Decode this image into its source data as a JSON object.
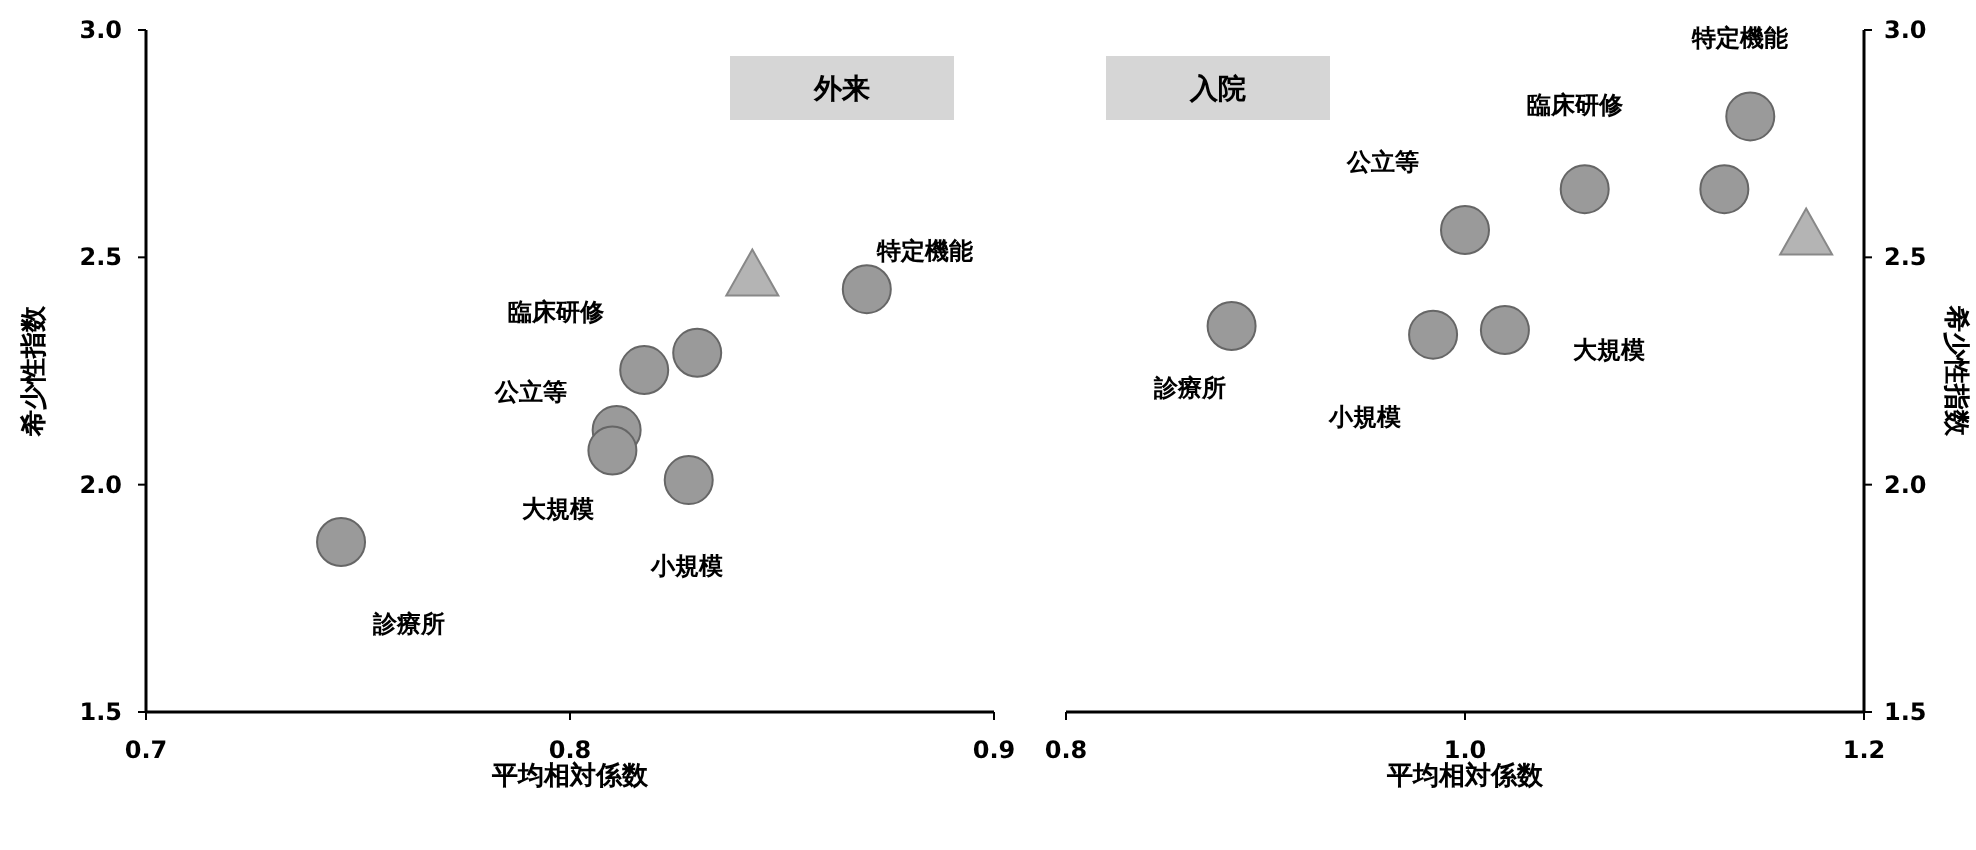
{
  "chart_data": [
    {
      "type": "scatter",
      "title": "外来",
      "xlabel": "平均相対係数",
      "ylabel": "希少性指数",
      "xlim": [
        0.7,
        0.9
      ],
      "xticks": [
        0.7,
        0.8,
        0.9
      ],
      "ylim": [
        1.5,
        3.0
      ],
      "yticks": [
        1.5,
        {
          "value": 2.0,
          "label": "2.0"
        },
        2.5,
        {
          "value": 3.0,
          "label": "3.0"
        }
      ],
      "grid": false,
      "series": [
        {
          "color": "#9a9a9a",
          "marker": "circle",
          "x": [
            0.746,
            0.8175,
            0.83,
            0.811,
            0.81,
            0.828,
            0.87
          ],
          "values": [
            1.874,
            2.252,
            2.29,
            2.12,
            2.075,
            2.01,
            2.43
          ]
        },
        {
          "color": "#b4b4b4",
          "marker": "triangle",
          "x": [
            0.843
          ],
          "values": [
            2.46
          ]
        }
      ],
      "annotations": [
        "特定機能",
        "臨床研修",
        "公立等",
        "大規模",
        "小規模",
        "診療所"
      ]
    },
    {
      "type": "scatter",
      "title": "入院",
      "xlabel": "平均相対係数",
      "y2label": "希少性指数",
      "xlim": [
        0.8,
        1.2
      ],
      "xticks": [
        0.8,
        {
          "value": 1.0,
          "label": "1.0"
        },
        1.2
      ],
      "y2lim": [
        1.5,
        3.0
      ],
      "y2ticks": [
        1.5,
        {
          "value": 2.0,
          "label": "2.0"
        },
        2.5,
        {
          "value": 3.0,
          "label": "3.0"
        }
      ],
      "grid": false,
      "series": [
        {
          "axis": "y2",
          "color": "#9a9a9a",
          "marker": "circle",
          "x": [
            0.883,
            0.984,
            1.02,
            1.0,
            1.06,
            1.13,
            1.143
          ],
          "values": [
            2.349,
            2.33,
            2.34,
            2.56,
            2.65,
            2.65,
            2.81
          ]
        },
        {
          "axis": "y2",
          "color": "#b4b4b4",
          "marker": "triangle",
          "x": [
            1.171
          ],
          "values": [
            2.55
          ]
        }
      ],
      "annotations": [
        "特定機能",
        "臨床研修",
        "公立等",
        "大規模",
        "小規模",
        "診療所"
      ]
    }
  ]
}
